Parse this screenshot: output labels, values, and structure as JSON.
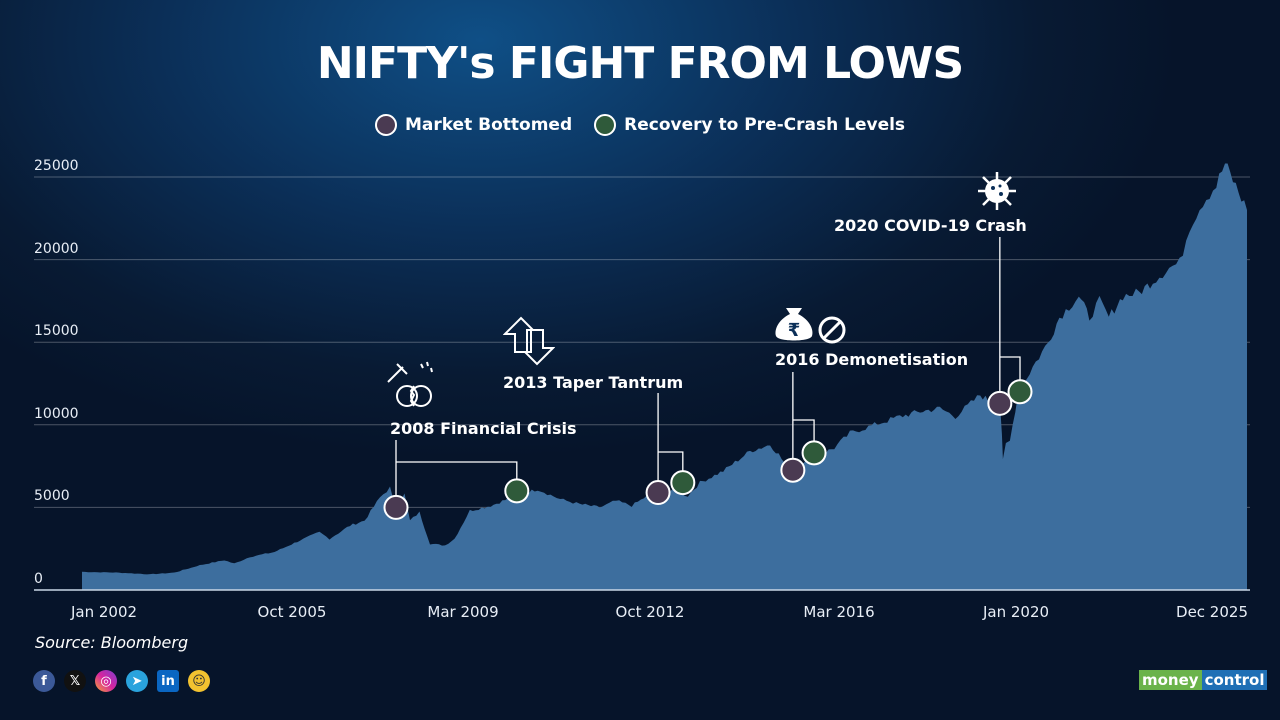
{
  "chart_data": {
    "type": "area",
    "title": "NIFTY's FIGHT FROM LOWS",
    "legend": [
      {
        "label": "Market Bottomed",
        "color": "#4a3a52"
      },
      {
        "label": "Recovery to Pre-Crash Levels",
        "color": "#2f5a3a"
      }
    ],
    "legend_placement": "top-center",
    "ylim": [
      0,
      25000
    ],
    "yticks": [
      0,
      5000,
      10000,
      15000,
      20000,
      25000
    ],
    "xticks": [
      {
        "label": "Jan 2002",
        "x": 2002.0
      },
      {
        "label": "Oct 2005",
        "x": 2005.75
      },
      {
        "label": "Mar 2009",
        "x": 2009.17
      },
      {
        "label": "Oct 2012",
        "x": 2012.75
      },
      {
        "label": "Mar 2016",
        "x": 2016.17
      },
      {
        "label": "Jan 2020",
        "x": 2020.0
      },
      {
        "label": "Dec 2025",
        "x": 2025.92
      }
    ],
    "grid": true,
    "series": [
      {
        "name": "NIFTY",
        "color": "#3d6e9e",
        "points": [
          [
            2001.56,
            1100
          ],
          [
            2002.3,
            1050
          ],
          [
            2002.92,
            950
          ],
          [
            2003.4,
            1050
          ],
          [
            2003.91,
            1500
          ],
          [
            2004.4,
            1800
          ],
          [
            2004.6,
            1600
          ],
          [
            2004.91,
            2000
          ],
          [
            2005.4,
            2300
          ],
          [
            2005.91,
            3000
          ],
          [
            2006.3,
            3500
          ],
          [
            2006.5,
            3100
          ],
          [
            2006.91,
            3900
          ],
          [
            2007.2,
            4200
          ],
          [
            2007.51,
            5600
          ],
          [
            2007.71,
            6200
          ],
          [
            2007.81,
            5000
          ],
          [
            2008.0,
            5800
          ],
          [
            2008.11,
            4200
          ],
          [
            2008.3,
            4700
          ],
          [
            2008.51,
            2800
          ],
          [
            2008.81,
            2700
          ],
          [
            2009.0,
            3100
          ],
          [
            2009.3,
            4800
          ],
          [
            2009.7,
            5100
          ],
          [
            2010.26,
            5800
          ],
          [
            2010.6,
            6100
          ],
          [
            2011.03,
            5500
          ],
          [
            2011.4,
            5200
          ],
          [
            2011.79,
            5000
          ],
          [
            2012.1,
            5400
          ],
          [
            2012.4,
            5100
          ],
          [
            2012.75,
            5800
          ],
          [
            2013.2,
            6000
          ],
          [
            2013.5,
            5700
          ],
          [
            2013.74,
            6500
          ],
          [
            2014.2,
            7200
          ],
          [
            2014.73,
            8400
          ],
          [
            2015.13,
            8800
          ],
          [
            2015.3,
            8200
          ],
          [
            2015.52,
            7200
          ],
          [
            2015.8,
            7800
          ],
          [
            2016.12,
            8200
          ],
          [
            2016.4,
            8600
          ],
          [
            2016.71,
            9500
          ],
          [
            2017.2,
            10000
          ],
          [
            2017.7,
            10500
          ],
          [
            2018.1,
            10800
          ],
          [
            2018.49,
            11000
          ],
          [
            2018.8,
            10500
          ],
          [
            2019.29,
            11800
          ],
          [
            2019.5,
            11400
          ],
          [
            2019.68,
            11500
          ],
          [
            2019.72,
            9500
          ],
          [
            2019.74,
            7800
          ],
          [
            2019.8,
            8800
          ],
          [
            2019.88,
            9000
          ],
          [
            2020.06,
            11900
          ],
          [
            2020.5,
            13500
          ],
          [
            2020.97,
            15000
          ],
          [
            2021.3,
            16500
          ],
          [
            2021.88,
            17800
          ],
          [
            2022.2,
            16500
          ],
          [
            2022.5,
            17500
          ],
          [
            2022.78,
            16500
          ],
          [
            2023.2,
            17800
          ],
          [
            2023.69,
            18000
          ],
          [
            2024.1,
            18700
          ],
          [
            2024.59,
            19500
          ],
          [
            2024.9,
            19800
          ],
          [
            2025.2,
            22000
          ],
          [
            2025.6,
            23500
          ],
          [
            2026.0,
            24500
          ],
          [
            2026.26,
            25800
          ],
          [
            2026.5,
            24800
          ],
          [
            2026.92,
            23000
          ]
        ]
      }
    ],
    "markers": [
      {
        "event": "2008 Financial Crisis",
        "bottom": [
          2007.83,
          5000
        ],
        "recovery": [
          2010.2,
          6000
        ]
      },
      {
        "event": "2013 Taper Tantrum",
        "bottom": [
          2012.91,
          5900
        ],
        "recovery": [
          2013.4,
          6500
        ]
      },
      {
        "event": "2016 Demonetisation",
        "bottom": [
          2015.58,
          7250
        ],
        "recovery": [
          2016.0,
          8300
        ]
      },
      {
        "event": "2020 COVID-19 Crash",
        "bottom": [
          2019.68,
          11300
        ],
        "recovery": [
          2020.12,
          12000
        ]
      }
    ]
  },
  "source": "Source: Bloomberg",
  "social": [
    "f",
    "𝕏",
    "◎",
    "➤",
    "in",
    "☺"
  ],
  "logo": {
    "part1": "money",
    "part2": "control"
  },
  "colors": {
    "area": "#3d6e9e",
    "bottom": "#4a3a52",
    "recovery": "#2f5a3a"
  }
}
